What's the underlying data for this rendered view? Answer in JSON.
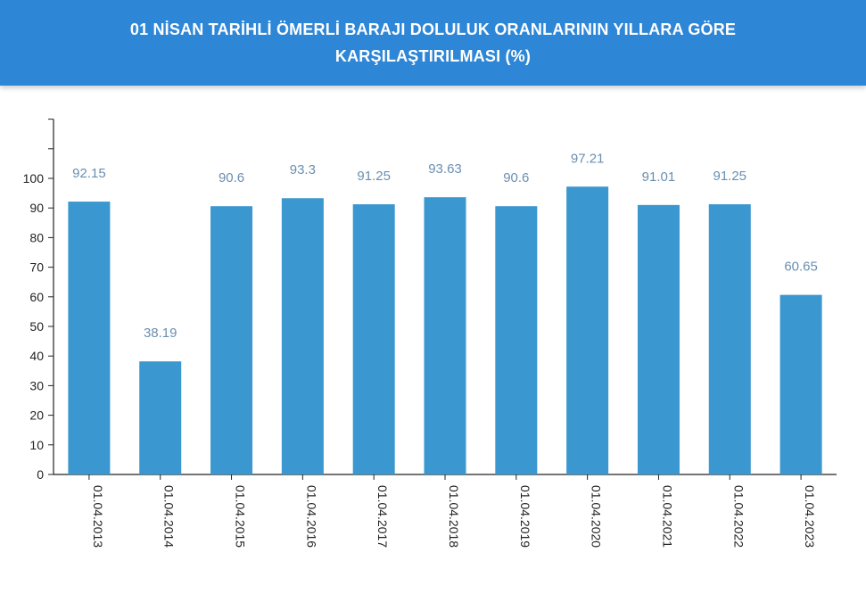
{
  "header": {
    "title_line1": "01 NİSAN TARİHLİ ÖMERLİ BARAJI DOLULUK ORANLARININ YILLARA GÖRE",
    "title_line2": "KARŞILAŞTIRILMASI (%)",
    "background_color": "#2e86d6"
  },
  "chart_data": {
    "type": "bar",
    "title": "01 NİSAN TARİHLİ ÖMERLİ BARAJI DOLULUK ORANLARININ YILLARA GÖRE KARŞILAŞTIRILMASI (%)",
    "categories": [
      "01.04.2013",
      "01.04.2014",
      "01.04.2015",
      "01.04.2016",
      "01.04.2017",
      "01.04.2018",
      "01.04.2019",
      "01.04.2020",
      "01.04.2021",
      "01.04.2022",
      "01.04.2023"
    ],
    "values": [
      92.15,
      38.19,
      90.6,
      93.3,
      91.25,
      93.63,
      90.6,
      97.21,
      91.01,
      91.25,
      60.65
    ],
    "value_labels": [
      "92.15",
      "38.19",
      "90.6",
      "93.3",
      "91.25",
      "93.63",
      "90.6",
      "97.21",
      "91.01",
      "91.25",
      "60.65"
    ],
    "y_ticks": [
      0,
      10,
      20,
      30,
      40,
      50,
      60,
      70,
      80,
      90,
      100
    ],
    "ylim": [
      0,
      120
    ],
    "xlabel": "",
    "ylabel": "",
    "grid": false,
    "legend": "none",
    "bar_color": "#3a97cf",
    "value_label_color": "#6a8fb0"
  }
}
